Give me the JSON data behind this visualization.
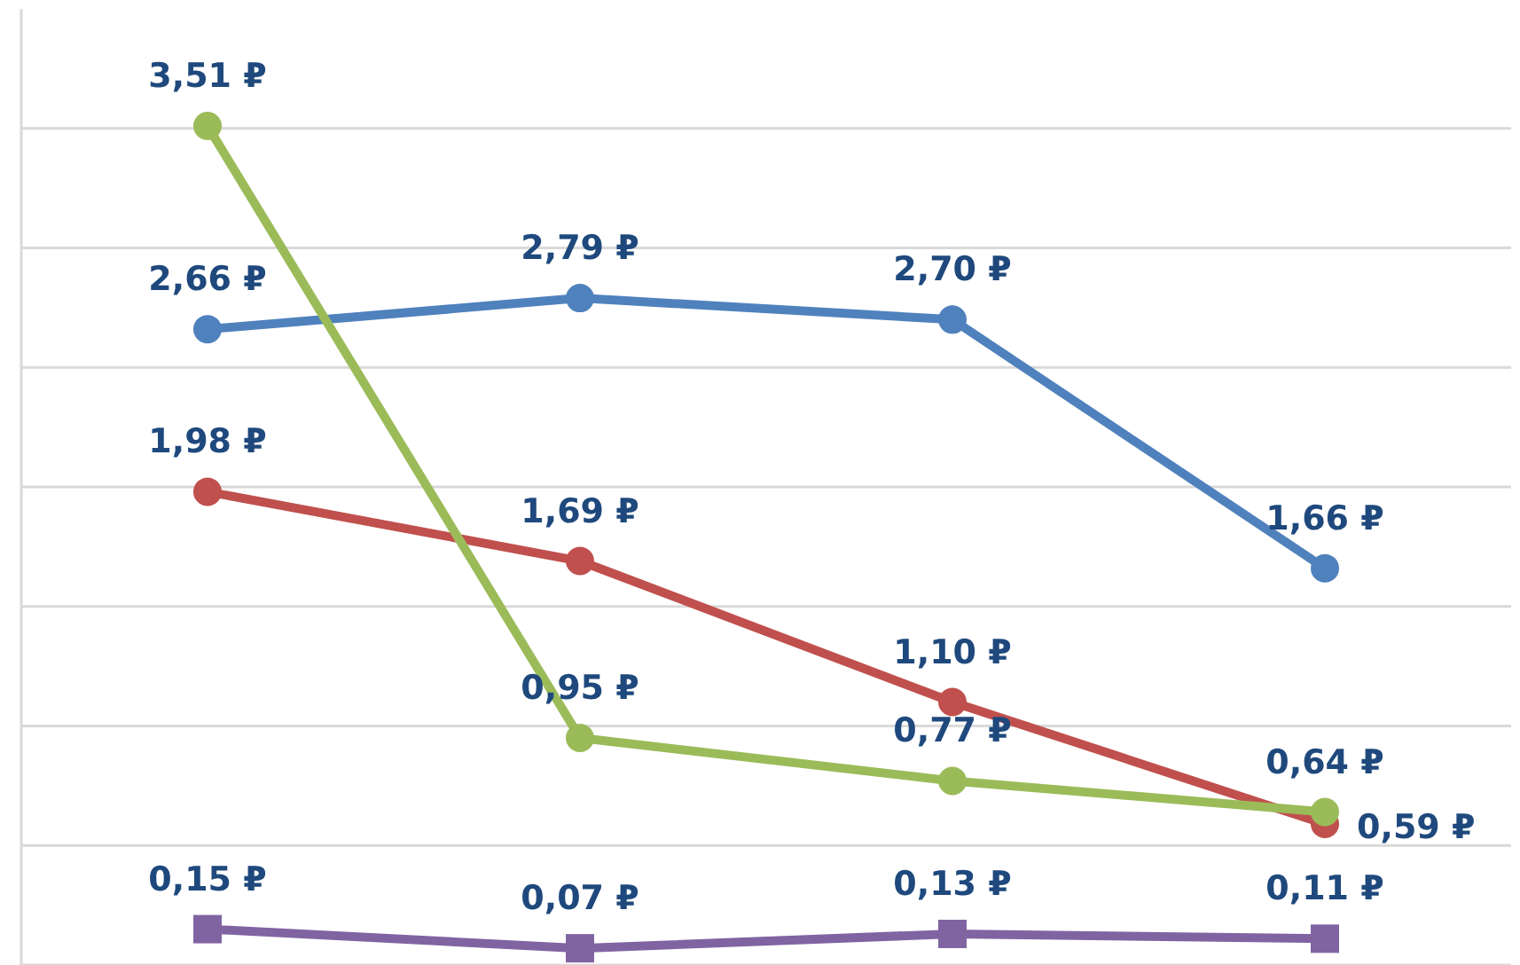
{
  "chart_data": {
    "type": "line",
    "categories": [
      null,
      null,
      null,
      null
    ],
    "ylim": [
      0,
      4
    ],
    "yticks": [
      {
        "value": 0,
        "label": null
      },
      {
        "value": 0.5,
        "label": null
      },
      {
        "value": 1,
        "label": null
      },
      {
        "value": 1.5,
        "label": null
      },
      {
        "value": 2,
        "label": null
      },
      {
        "value": 2.5,
        "label": null
      },
      {
        "value": 3,
        "label": null
      },
      {
        "value": 3.5,
        "label": null
      }
    ],
    "grid": "y",
    "legend": false,
    "marker": "circle",
    "series": [
      {
        "color": "#4f81bd",
        "values": [
          2.66,
          2.79,
          2.7,
          1.66
        ],
        "value_labels": [
          "2,66 ₽",
          "2,79 ₽",
          "2,70 ₽",
          "1,66 ₽"
        ]
      },
      {
        "color": "#c0504d",
        "values": [
          1.98,
          1.69,
          1.1,
          0.59
        ],
        "value_labels": [
          "1,98 ₽",
          "1,69 ₽",
          "1,10 ₽",
          "0,59 ₽"
        ]
      },
      {
        "color": "#9bbb59",
        "values": [
          3.51,
          0.95,
          0.77,
          0.64
        ],
        "value_labels": [
          "3,51 ₽",
          "0,95 ₽",
          "0,77 ₽",
          "0,64 ₽"
        ]
      },
      {
        "color": "#8064a2",
        "marker": "square",
        "values": [
          0.15,
          0.07,
          0.13,
          0.11
        ],
        "value_labels": [
          "0,15 ₽",
          "0,07 ₽",
          "0,13 ₽",
          "0,11 ₽"
        ]
      }
    ]
  }
}
